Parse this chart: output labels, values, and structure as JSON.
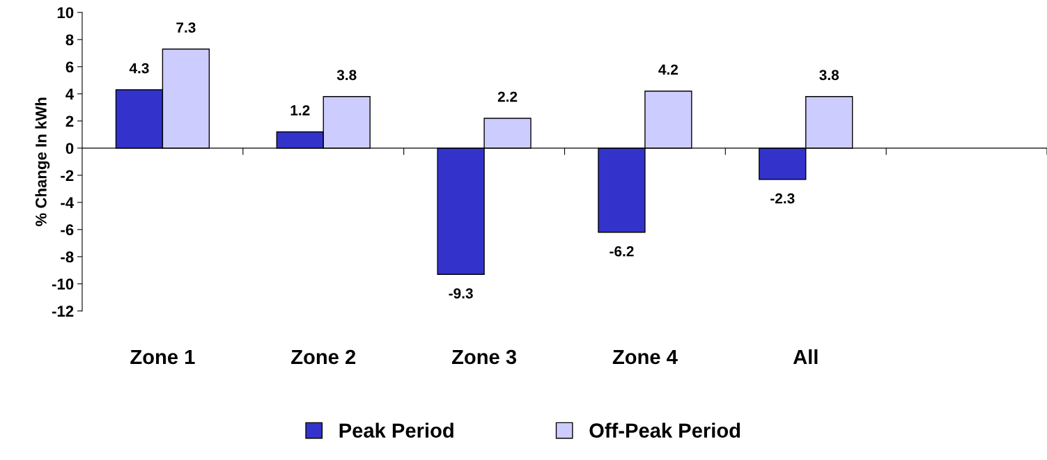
{
  "chart_data": {
    "type": "bar",
    "ylabel": "% Change In kWh",
    "categories": [
      "Zone 1",
      "Zone 2",
      "Zone 3",
      "Zone 4",
      "All",
      null
    ],
    "series": [
      {
        "name": "Peak Period",
        "color": "#3333cc",
        "values": [
          4.3,
          1.2,
          -9.3,
          -6.2,
          -2.3,
          null
        ]
      },
      {
        "name": "Off-Peak Period",
        "color": "#ccccff",
        "values": [
          7.3,
          3.8,
          2.2,
          4.2,
          3.8,
          null
        ]
      }
    ],
    "ylim": [
      -12,
      10
    ],
    "yticks": [
      -12,
      -10,
      -8,
      -6,
      -4,
      -2,
      0,
      2,
      4,
      6,
      8,
      10
    ],
    "data_labels": true,
    "legend": "bottom"
  }
}
